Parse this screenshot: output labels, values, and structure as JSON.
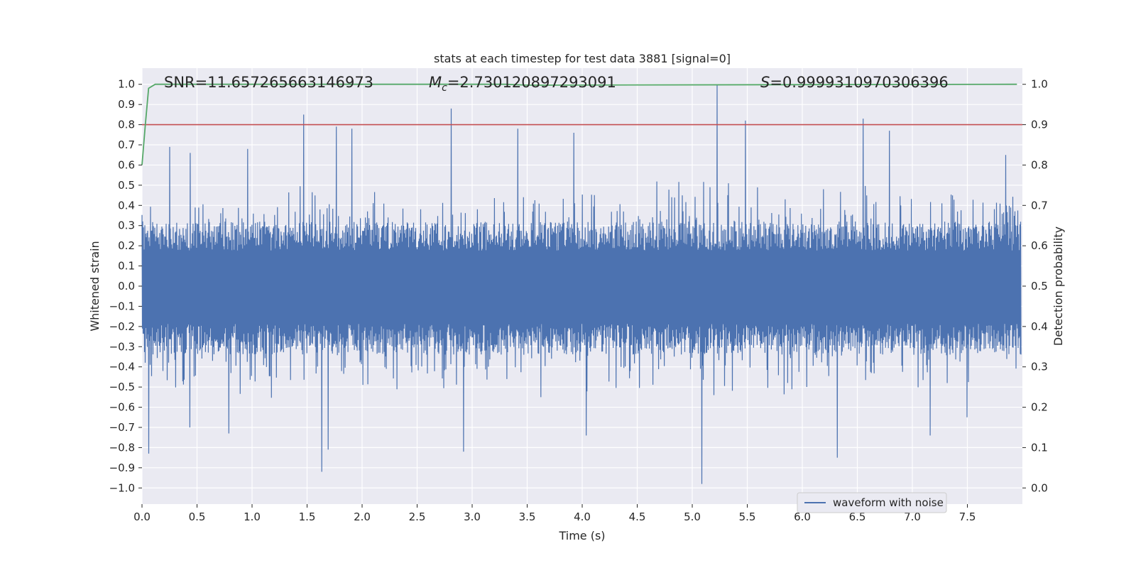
{
  "chart_data": {
    "type": "line",
    "title": "stats at each timestep for test data 3881 [signal=0]",
    "xlabel": "Time (s)",
    "ylabel": "Whitened strain",
    "y2label": "Detection probability",
    "xlim": [
      0.0,
      8.0
    ],
    "ylim": [
      -1.08,
      1.08
    ],
    "y2lim": [
      -0.04,
      1.04
    ],
    "grid": true,
    "legend_placement": "lower-right",
    "x_ticks": [
      "0.0",
      "0.5",
      "1.0",
      "1.5",
      "2.0",
      "2.5",
      "3.0",
      "3.5",
      "4.0",
      "4.5",
      "5.0",
      "5.5",
      "6.0",
      "6.5",
      "7.0",
      "7.5"
    ],
    "y_ticks": [
      "1.0",
      "0.9",
      "0.8",
      "0.7",
      "0.6",
      "0.5",
      "0.4",
      "0.3",
      "0.2",
      "0.1",
      "0.0",
      "−0.1",
      "−0.2",
      "−0.3",
      "−0.4",
      "−0.5",
      "−0.6",
      "−0.7",
      "−0.8",
      "−0.9",
      "−1.0"
    ],
    "y2_ticks": [
      "1.0",
      "0.9",
      "0.8",
      "0.7",
      "0.6",
      "0.5",
      "0.4",
      "0.3",
      "0.2",
      "0.1",
      "0.0"
    ],
    "annotations": {
      "snr": "SNR=11.657265663146973",
      "mc_symbol": "M",
      "mc_sub": "c",
      "mc_value": "=2.730120897293091",
      "s_symbol": "S",
      "s_value": "=0.9999310970306396"
    },
    "series": [
      {
        "name": "waveform with noise",
        "color": "#4c72b0",
        "note_style": "dense noise trace",
        "typical_upper": 0.32,
        "typical_lower": -0.34,
        "peaks": [
          {
            "x": 0.25,
            "y": 0.69
          },
          {
            "x": 0.44,
            "y": 0.66
          },
          {
            "x": 0.96,
            "y": 0.68
          },
          {
            "x": 1.47,
            "y": 0.85
          },
          {
            "x": 1.77,
            "y": 0.79
          },
          {
            "x": 1.91,
            "y": 0.78
          },
          {
            "x": 2.81,
            "y": 0.88
          },
          {
            "x": 3.42,
            "y": 0.78
          },
          {
            "x": 3.93,
            "y": 0.76
          },
          {
            "x": 5.23,
            "y": 1.0
          },
          {
            "x": 5.49,
            "y": 0.82
          },
          {
            "x": 6.56,
            "y": 0.83
          },
          {
            "x": 6.8,
            "y": 0.77
          },
          {
            "x": 7.86,
            "y": 0.65
          }
        ],
        "troughs": [
          {
            "x": 0.06,
            "y": -0.83
          },
          {
            "x": 0.43,
            "y": -0.7
          },
          {
            "x": 0.79,
            "y": -0.73
          },
          {
            "x": 1.63,
            "y": -0.92
          },
          {
            "x": 1.69,
            "y": -0.81
          },
          {
            "x": 2.92,
            "y": -0.82
          },
          {
            "x": 4.04,
            "y": -0.74
          },
          {
            "x": 5.09,
            "y": -0.98
          },
          {
            "x": 6.32,
            "y": -0.85
          },
          {
            "x": 7.17,
            "y": -0.74
          },
          {
            "x": 7.5,
            "y": -0.65
          }
        ]
      },
      {
        "name": "",
        "color": "#55a868",
        "axis": "right",
        "x": [
          0.0,
          0.03,
          0.06,
          0.12,
          3.3,
          3.5,
          7.95
        ],
        "values": [
          0.8,
          0.9,
          0.99,
          1.0,
          1.0,
          0.998,
          1.0
        ]
      },
      {
        "name": "",
        "color": "#c44e52",
        "axis": "right",
        "note_style": "threshold line",
        "values": [
          0.9
        ]
      }
    ]
  }
}
